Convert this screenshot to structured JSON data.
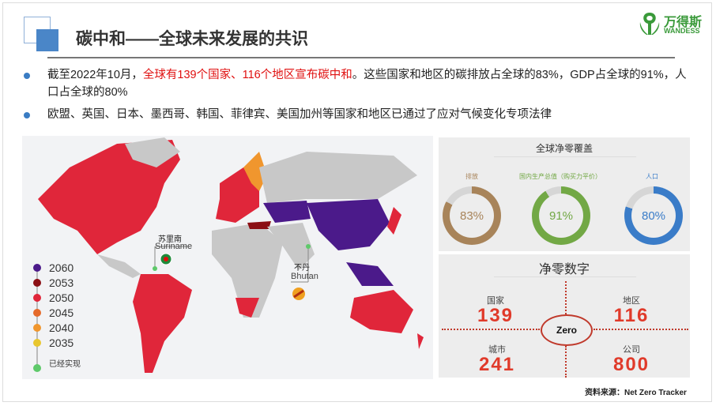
{
  "header": {
    "title": "碳中和——全球未来发展的共识",
    "logo_cn": "万得斯",
    "logo_en": "WANDESS"
  },
  "bullets": [
    {
      "pre": "截至2022年10月，",
      "highlight": "全球有139个国家、116个地区宣布碳中和",
      "post": "。这些国家和地区的碳排放占全球的83%，GDP占全球的91%，人口占全球的80%"
    },
    {
      "text": "欧盟、英国、日本、墨西哥、韩国、菲律宾、美国加州等国家和地区已通过了应对气候变化专项法律"
    }
  ],
  "map": {
    "legend": [
      {
        "label": "2060",
        "color": "#4b1a8a"
      },
      {
        "label": "2053",
        "color": "#8b0f14"
      },
      {
        "label": "2050",
        "color": "#e0263a"
      },
      {
        "label": "2045",
        "color": "#e56a2a"
      },
      {
        "label": "2040",
        "color": "#f0962e"
      },
      {
        "label": "2035",
        "color": "#e8c62e"
      },
      {
        "label": "已经实现",
        "color": "#5ec96a"
      }
    ],
    "annotations": [
      {
        "cn": "苏里南",
        "en": "Suriname"
      },
      {
        "cn": "不丹",
        "en": "Bhutan"
      }
    ]
  },
  "coverage": {
    "title": "全球净零覆盖",
    "items": [
      {
        "label": "排放",
        "value": 83,
        "display": "83%",
        "color": "#a8845a"
      },
      {
        "label": "国内生产总值（购买力平价）",
        "value": 91,
        "display": "91%",
        "color": "#72a845"
      },
      {
        "label": "人口",
        "value": 80,
        "display": "80%",
        "color": "#3a7cc8"
      }
    ]
  },
  "netzero": {
    "title": "净零数字",
    "center": "Zero",
    "items": [
      {
        "label": "国家",
        "value": "139"
      },
      {
        "label": "地区",
        "value": "116"
      },
      {
        "label": "城市",
        "value": "241"
      },
      {
        "label": "公司",
        "value": "800"
      }
    ]
  },
  "source": "资料来源：Net Zero Tracker"
}
